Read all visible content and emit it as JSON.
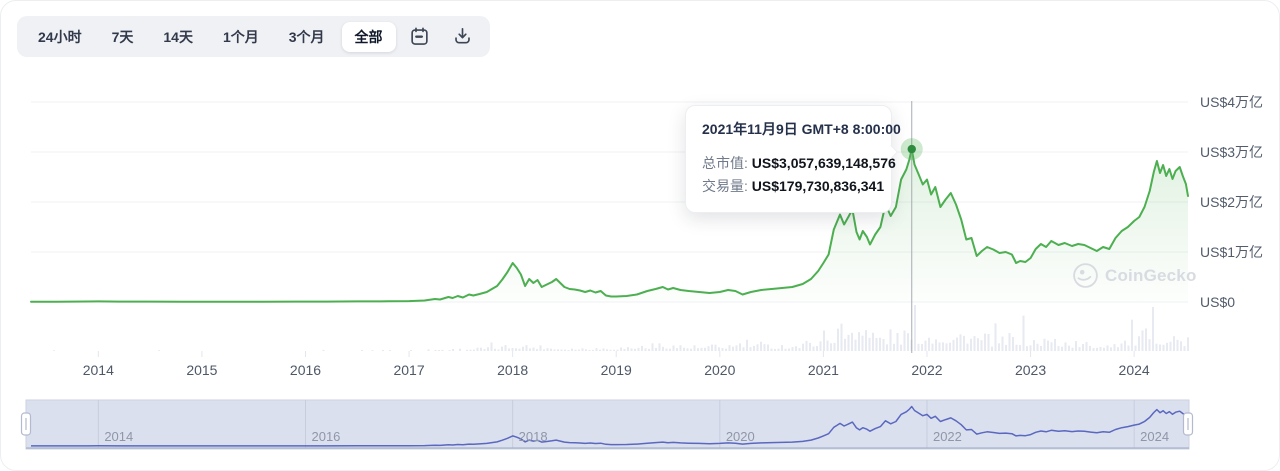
{
  "toolbar": {
    "ranges": [
      {
        "label": "24小时",
        "active": false
      },
      {
        "label": "7天",
        "active": false
      },
      {
        "label": "14天",
        "active": false
      },
      {
        "label": "1个月",
        "active": false
      },
      {
        "label": "3个月",
        "active": false
      },
      {
        "label": "全部",
        "active": true
      }
    ],
    "icons": [
      "calendar-icon",
      "download-icon"
    ]
  },
  "tooltip": {
    "title": "2021年11月9日 GMT+8 8:00:00",
    "rows": [
      {
        "label": "总市值:",
        "value": "US$3,057,639,148,576"
      },
      {
        "label": "交易量:",
        "value": "US$179,730,836,341"
      }
    ]
  },
  "watermark": {
    "text": "CoinGecko",
    "icon": "coingecko-logo-icon"
  },
  "axes": {
    "y_labels": [
      {
        "text": "US$4万亿",
        "value": 4
      },
      {
        "text": "US$3万亿",
        "value": 3
      },
      {
        "text": "US$2万亿",
        "value": 2
      },
      {
        "text": "US$1万亿",
        "value": 1
      },
      {
        "text": "US$0",
        "value": 0
      }
    ],
    "x_years": [
      2014,
      2015,
      2016,
      2017,
      2018,
      2019,
      2020,
      2021,
      2022,
      2023,
      2024
    ],
    "nav_years": [
      2014,
      2016,
      2018,
      2020,
      2022,
      2024
    ]
  },
  "colors": {
    "line": "#4caf50",
    "area_top": "rgba(76,175,80,0.22)",
    "area_bottom": "rgba(76,175,80,0.01)",
    "dot": "#2e8b3d",
    "halo": "rgba(76,175,80,0.28)",
    "crosshair": "#a7abb3",
    "grid": "#f0f2f5",
    "tick": "#e3e6eb",
    "volume": "#e7eaf0",
    "nav_bg": "#dbe0ee",
    "nav_grid": "#c7cddd",
    "nav_bottom": "#a9b2d0",
    "nav_line": "#5a68c0",
    "handle_border": "#b3bad0"
  },
  "chart_data": {
    "type": "area",
    "title": "加密货币总市值",
    "ylabel": "US$万亿",
    "ylim": [
      0,
      4
    ],
    "xlim": [
      2013.35,
      2024.52
    ],
    "legend": "none",
    "grid": "horizontal",
    "highlight": {
      "x": 2021.853,
      "value": 3.057639,
      "market_cap": "US$3,057,639,148,576",
      "volume": "US$179,730,836,341",
      "date": "2021年11月9日 GMT+8 8:00:00"
    },
    "series": [
      {
        "name": "总市值",
        "unit": "万亿美元",
        "points": [
          [
            2013.35,
            0.004
          ],
          [
            2013.6,
            0.005
          ],
          [
            2013.9,
            0.01
          ],
          [
            2014.0,
            0.012
          ],
          [
            2014.2,
            0.009
          ],
          [
            2014.5,
            0.007
          ],
          [
            2014.8,
            0.006
          ],
          [
            2015.0,
            0.005
          ],
          [
            2015.3,
            0.004
          ],
          [
            2015.6,
            0.005
          ],
          [
            2015.9,
            0.007
          ],
          [
            2016.2,
            0.009
          ],
          [
            2016.5,
            0.012
          ],
          [
            2016.8,
            0.014
          ],
          [
            2017.0,
            0.018
          ],
          [
            2017.15,
            0.03
          ],
          [
            2017.25,
            0.06
          ],
          [
            2017.3,
            0.05
          ],
          [
            2017.38,
            0.1
          ],
          [
            2017.42,
            0.08
          ],
          [
            2017.47,
            0.12
          ],
          [
            2017.52,
            0.09
          ],
          [
            2017.58,
            0.15
          ],
          [
            2017.62,
            0.13
          ],
          [
            2017.68,
            0.16
          ],
          [
            2017.75,
            0.2
          ],
          [
            2017.8,
            0.26
          ],
          [
            2017.85,
            0.32
          ],
          [
            2017.9,
            0.45
          ],
          [
            2017.95,
            0.6
          ],
          [
            2018.0,
            0.78
          ],
          [
            2018.04,
            0.68
          ],
          [
            2018.08,
            0.55
          ],
          [
            2018.12,
            0.32
          ],
          [
            2018.16,
            0.46
          ],
          [
            2018.2,
            0.38
          ],
          [
            2018.24,
            0.44
          ],
          [
            2018.28,
            0.3
          ],
          [
            2018.33,
            0.35
          ],
          [
            2018.38,
            0.4
          ],
          [
            2018.42,
            0.46
          ],
          [
            2018.46,
            0.38
          ],
          [
            2018.5,
            0.3
          ],
          [
            2018.55,
            0.26
          ],
          [
            2018.6,
            0.25
          ],
          [
            2018.65,
            0.23
          ],
          [
            2018.7,
            0.2
          ],
          [
            2018.75,
            0.23
          ],
          [
            2018.8,
            0.19
          ],
          [
            2018.85,
            0.22
          ],
          [
            2018.9,
            0.13
          ],
          [
            2018.95,
            0.11
          ],
          [
            2019.0,
            0.11
          ],
          [
            2019.1,
            0.12
          ],
          [
            2019.2,
            0.15
          ],
          [
            2019.3,
            0.22
          ],
          [
            2019.38,
            0.26
          ],
          [
            2019.45,
            0.3
          ],
          [
            2019.5,
            0.25
          ],
          [
            2019.55,
            0.28
          ],
          [
            2019.62,
            0.24
          ],
          [
            2019.7,
            0.22
          ],
          [
            2019.8,
            0.2
          ],
          [
            2019.9,
            0.18
          ],
          [
            2020.0,
            0.2
          ],
          [
            2020.08,
            0.24
          ],
          [
            2020.15,
            0.22
          ],
          [
            2020.22,
            0.15
          ],
          [
            2020.3,
            0.2
          ],
          [
            2020.4,
            0.24
          ],
          [
            2020.5,
            0.26
          ],
          [
            2020.6,
            0.28
          ],
          [
            2020.7,
            0.3
          ],
          [
            2020.8,
            0.36
          ],
          [
            2020.88,
            0.46
          ],
          [
            2020.95,
            0.62
          ],
          [
            2021.0,
            0.78
          ],
          [
            2021.05,
            0.95
          ],
          [
            2021.1,
            1.45
          ],
          [
            2021.13,
            1.6
          ],
          [
            2021.16,
            1.75
          ],
          [
            2021.2,
            1.55
          ],
          [
            2021.24,
            1.7
          ],
          [
            2021.28,
            1.85
          ],
          [
            2021.32,
            1.4
          ],
          [
            2021.35,
            1.25
          ],
          [
            2021.38,
            1.42
          ],
          [
            2021.42,
            1.3
          ],
          [
            2021.45,
            1.15
          ],
          [
            2021.5,
            1.35
          ],
          [
            2021.55,
            1.5
          ],
          [
            2021.6,
            1.95
          ],
          [
            2021.65,
            1.72
          ],
          [
            2021.7,
            1.9
          ],
          [
            2021.75,
            2.45
          ],
          [
            2021.8,
            2.65
          ],
          [
            2021.83,
            2.85
          ],
          [
            2021.853,
            3.06
          ],
          [
            2021.88,
            2.75
          ],
          [
            2021.92,
            2.55
          ],
          [
            2021.96,
            2.35
          ],
          [
            2022.0,
            2.45
          ],
          [
            2022.04,
            2.15
          ],
          [
            2022.08,
            2.3
          ],
          [
            2022.13,
            1.9
          ],
          [
            2022.18,
            2.05
          ],
          [
            2022.23,
            2.18
          ],
          [
            2022.28,
            1.95
          ],
          [
            2022.33,
            1.65
          ],
          [
            2022.38,
            1.25
          ],
          [
            2022.43,
            1.28
          ],
          [
            2022.48,
            0.92
          ],
          [
            2022.53,
            1.02
          ],
          [
            2022.58,
            1.1
          ],
          [
            2022.64,
            1.05
          ],
          [
            2022.7,
            0.98
          ],
          [
            2022.76,
            1.0
          ],
          [
            2022.82,
            0.95
          ],
          [
            2022.86,
            0.78
          ],
          [
            2022.9,
            0.82
          ],
          [
            2022.95,
            0.8
          ],
          [
            2023.0,
            0.88
          ],
          [
            2023.05,
            1.06
          ],
          [
            2023.1,
            1.16
          ],
          [
            2023.15,
            1.1
          ],
          [
            2023.2,
            1.22
          ],
          [
            2023.27,
            1.14
          ],
          [
            2023.33,
            1.18
          ],
          [
            2023.4,
            1.12
          ],
          [
            2023.46,
            1.16
          ],
          [
            2023.52,
            1.14
          ],
          [
            2023.58,
            1.08
          ],
          [
            2023.64,
            1.02
          ],
          [
            2023.7,
            1.1
          ],
          [
            2023.76,
            1.06
          ],
          [
            2023.82,
            1.28
          ],
          [
            2023.88,
            1.42
          ],
          [
            2023.94,
            1.5
          ],
          [
            2024.0,
            1.62
          ],
          [
            2024.05,
            1.7
          ],
          [
            2024.1,
            1.9
          ],
          [
            2024.15,
            2.22
          ],
          [
            2024.19,
            2.6
          ],
          [
            2024.22,
            2.82
          ],
          [
            2024.25,
            2.58
          ],
          [
            2024.28,
            2.74
          ],
          [
            2024.31,
            2.52
          ],
          [
            2024.34,
            2.66
          ],
          [
            2024.37,
            2.46
          ],
          [
            2024.4,
            2.62
          ],
          [
            2024.44,
            2.7
          ],
          [
            2024.47,
            2.52
          ],
          [
            2024.5,
            2.36
          ],
          [
            2024.52,
            2.12
          ]
        ]
      }
    ],
    "volume_envelope": [
      [
        2013.35,
        0.01
      ],
      [
        2016.0,
        0.01
      ],
      [
        2017.0,
        0.03
      ],
      [
        2017.5,
        0.06
      ],
      [
        2017.9,
        0.12
      ],
      [
        2018.0,
        0.2
      ],
      [
        2018.15,
        0.16
      ],
      [
        2018.5,
        0.08
      ],
      [
        2019.0,
        0.1
      ],
      [
        2019.45,
        0.2
      ],
      [
        2019.8,
        0.12
      ],
      [
        2020.1,
        0.18
      ],
      [
        2020.22,
        0.26
      ],
      [
        2020.5,
        0.16
      ],
      [
        2020.8,
        0.2
      ],
      [
        2021.0,
        0.5
      ],
      [
        2021.1,
        0.62
      ],
      [
        2021.25,
        0.8
      ],
      [
        2021.35,
        1.0
      ],
      [
        2021.45,
        0.55
      ],
      [
        2021.6,
        0.48
      ],
      [
        2021.75,
        0.5
      ],
      [
        2021.85,
        0.6
      ],
      [
        2022.0,
        0.52
      ],
      [
        2022.1,
        0.65
      ],
      [
        2022.25,
        0.5
      ],
      [
        2022.4,
        0.6
      ],
      [
        2022.5,
        0.42
      ],
      [
        2022.7,
        0.3
      ],
      [
        2022.86,
        0.5
      ],
      [
        2023.0,
        0.32
      ],
      [
        2023.2,
        0.38
      ],
      [
        2023.4,
        0.25
      ],
      [
        2023.6,
        0.2
      ],
      [
        2023.8,
        0.28
      ],
      [
        2024.0,
        0.4
      ],
      [
        2024.2,
        0.55
      ],
      [
        2024.35,
        0.45
      ],
      [
        2024.52,
        0.35
      ]
    ]
  }
}
